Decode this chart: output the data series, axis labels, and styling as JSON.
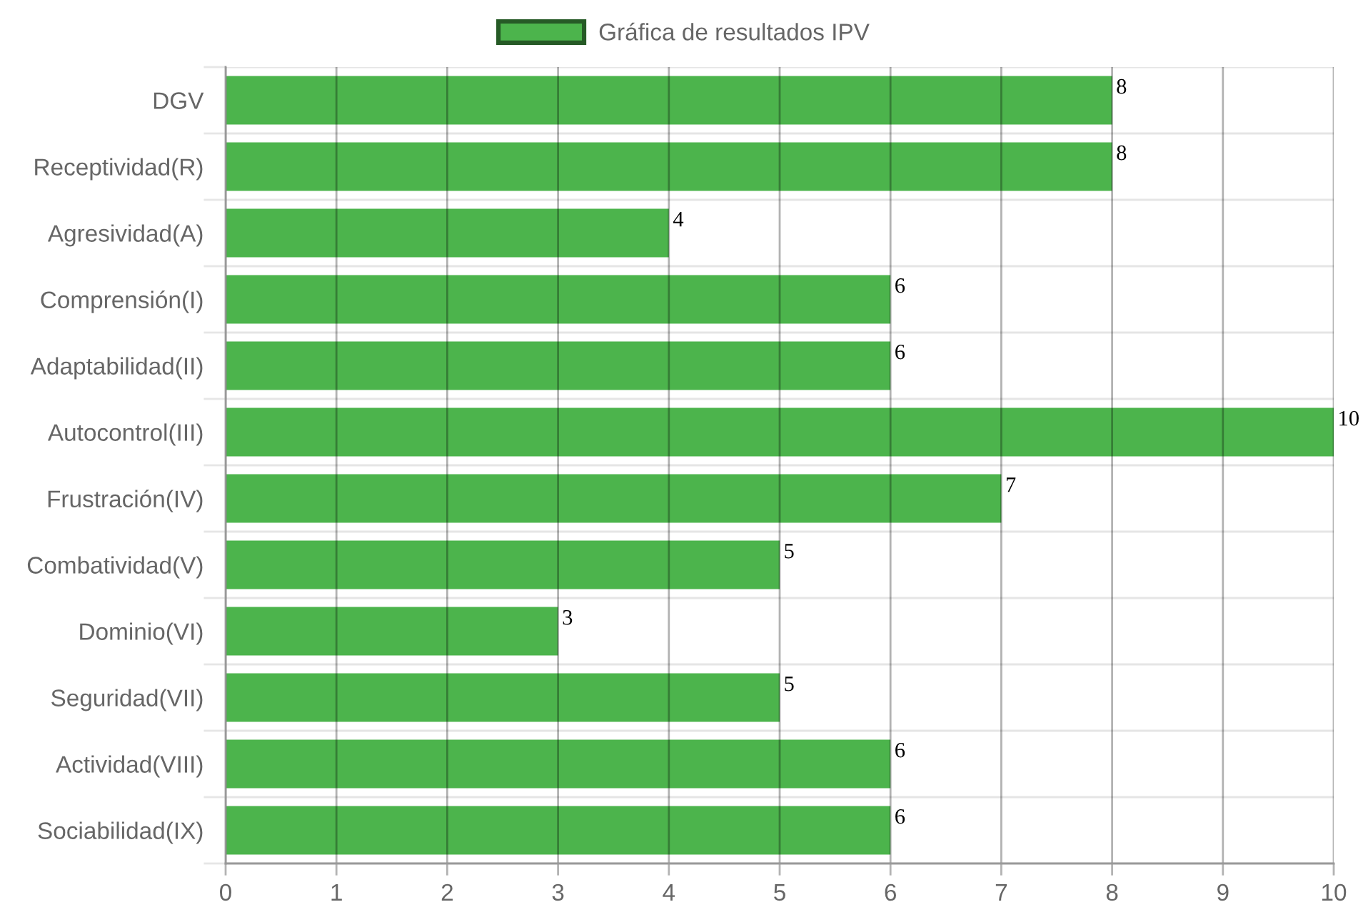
{
  "chart_data": {
    "type": "bar",
    "orientation": "horizontal",
    "categories": [
      "DGV",
      "Receptividad(R)",
      "Agresividad(A)",
      "Comprensión(I)",
      "Adaptabilidad(II)",
      "Autocontrol(III)",
      "Frustración(IV)",
      "Combatividad(V)",
      "Dominio(VI)",
      "Seguridad(VII)",
      "Actividad(VIII)",
      "Sociabilidad(IX)"
    ],
    "series": [
      {
        "name": "Gráfica de resultados IPV",
        "color": "#4cb44c",
        "values": [
          8,
          8,
          4,
          6,
          6,
          10,
          7,
          5,
          3,
          5,
          6,
          6
        ]
      }
    ],
    "xlim": [
      0,
      10
    ],
    "xticks": [
      0,
      1,
      2,
      3,
      4,
      5,
      6,
      7,
      8,
      9,
      10
    ],
    "grid": true,
    "legend": "top",
    "data_labels": true
  }
}
